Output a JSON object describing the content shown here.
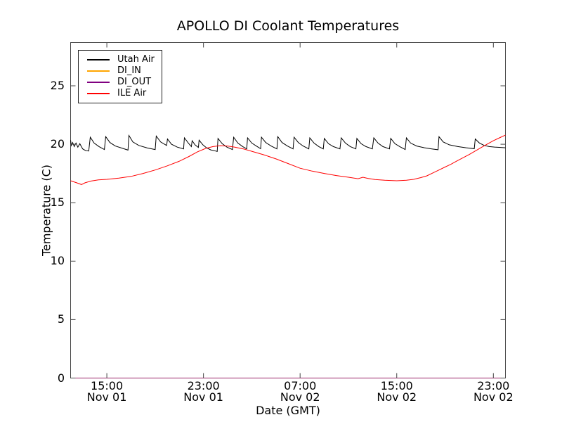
{
  "chart_data": {
    "type": "line",
    "title": "APOLLO DI Coolant Temperatures",
    "xlabel": "Date (GMT)",
    "ylabel": "Temperature (C)",
    "grid": false,
    "legend_position": "upper left",
    "frame_color": "#444444",
    "x_axis": {
      "unit": "hours since Nov 01 12:00 GMT",
      "range": [
        0,
        36
      ],
      "ticks": [
        {
          "t": 3,
          "time": "15:00",
          "date": "Nov 01"
        },
        {
          "t": 11,
          "time": "23:00",
          "date": "Nov 01"
        },
        {
          "t": 19,
          "time": "07:00",
          "date": "Nov 02"
        },
        {
          "t": 27,
          "time": "15:00",
          "date": "Nov 02"
        },
        {
          "t": 35,
          "time": "23:00",
          "date": "Nov 02"
        }
      ]
    },
    "y_axis": {
      "range": [
        0,
        28.7
      ],
      "ticks": [
        0,
        5,
        10,
        15,
        20,
        25
      ],
      "tick_labels": [
        "0",
        "5",
        "10",
        "15",
        "20",
        "25"
      ]
    },
    "series": [
      {
        "name": "Utah Air",
        "color": "#000000",
        "points": [
          [
            0,
            20.35
          ],
          [
            0.05,
            19.9
          ],
          [
            0.17,
            20.15
          ],
          [
            0.3,
            19.8
          ],
          [
            0.45,
            20.1
          ],
          [
            0.6,
            19.75
          ],
          [
            0.76,
            20.05
          ],
          [
            1.0,
            19.6
          ],
          [
            1.25,
            19.45
          ],
          [
            1.5,
            19.42
          ],
          [
            1.63,
            20.6
          ],
          [
            1.95,
            20.1
          ],
          [
            2.35,
            19.8
          ],
          [
            2.8,
            19.55
          ],
          [
            2.91,
            20.65
          ],
          [
            3.25,
            20.15
          ],
          [
            3.7,
            19.85
          ],
          [
            4.3,
            19.65
          ],
          [
            4.75,
            19.5
          ],
          [
            4.83,
            20.75
          ],
          [
            5.15,
            20.2
          ],
          [
            5.65,
            19.9
          ],
          [
            6.35,
            19.68
          ],
          [
            7.0,
            19.55
          ],
          [
            7.09,
            20.7
          ],
          [
            7.45,
            20.2
          ],
          [
            7.95,
            19.9
          ],
          [
            8.02,
            20.45
          ],
          [
            8.35,
            20.0
          ],
          [
            8.85,
            19.75
          ],
          [
            9.35,
            19.6
          ],
          [
            9.42,
            20.55
          ],
          [
            9.75,
            20.1
          ],
          [
            10.0,
            19.8
          ],
          [
            10.06,
            20.3
          ],
          [
            10.3,
            19.95
          ],
          [
            10.58,
            19.72
          ],
          [
            10.64,
            20.35
          ],
          [
            10.95,
            19.95
          ],
          [
            11.25,
            19.7
          ],
          [
            11.6,
            19.52
          ],
          [
            12.0,
            19.42
          ],
          [
            12.14,
            19.38
          ],
          [
            12.2,
            20.5
          ],
          [
            12.55,
            20.05
          ],
          [
            12.95,
            19.75
          ],
          [
            13.4,
            19.55
          ],
          [
            13.5,
            20.6
          ],
          [
            13.85,
            20.1
          ],
          [
            14.25,
            19.8
          ],
          [
            14.58,
            19.6
          ],
          [
            14.65,
            20.55
          ],
          [
            15.0,
            20.1
          ],
          [
            15.45,
            19.8
          ],
          [
            15.73,
            19.62
          ],
          [
            15.8,
            20.6
          ],
          [
            16.15,
            20.15
          ],
          [
            16.6,
            19.85
          ],
          [
            17.08,
            19.6
          ],
          [
            17.15,
            20.65
          ],
          [
            17.5,
            20.15
          ],
          [
            17.95,
            19.85
          ],
          [
            18.42,
            19.6
          ],
          [
            18.5,
            20.6
          ],
          [
            18.85,
            20.15
          ],
          [
            19.25,
            19.85
          ],
          [
            19.72,
            19.6
          ],
          [
            19.8,
            20.55
          ],
          [
            20.15,
            20.1
          ],
          [
            20.55,
            19.8
          ],
          [
            20.92,
            19.6
          ],
          [
            21.0,
            20.5
          ],
          [
            21.35,
            20.05
          ],
          [
            21.75,
            19.8
          ],
          [
            22.3,
            19.6
          ],
          [
            22.4,
            20.55
          ],
          [
            22.75,
            20.1
          ],
          [
            23.15,
            19.8
          ],
          [
            23.62,
            19.6
          ],
          [
            23.7,
            20.5
          ],
          [
            24.05,
            20.05
          ],
          [
            24.45,
            19.8
          ],
          [
            24.98,
            19.6
          ],
          [
            25.1,
            20.55
          ],
          [
            25.45,
            20.1
          ],
          [
            25.85,
            19.8
          ],
          [
            26.4,
            19.6
          ],
          [
            26.5,
            20.5
          ],
          [
            26.85,
            20.05
          ],
          [
            27.25,
            19.8
          ],
          [
            27.7,
            19.55
          ],
          [
            27.8,
            20.55
          ],
          [
            28.15,
            20.1
          ],
          [
            28.65,
            19.85
          ],
          [
            29.3,
            19.7
          ],
          [
            29.9,
            19.6
          ],
          [
            30.42,
            19.53
          ],
          [
            30.5,
            20.65
          ],
          [
            30.85,
            20.2
          ],
          [
            31.35,
            19.95
          ],
          [
            32.05,
            19.8
          ],
          [
            32.75,
            19.7
          ],
          [
            33.42,
            19.62
          ],
          [
            33.5,
            20.45
          ],
          [
            33.85,
            20.1
          ],
          [
            34.25,
            19.9
          ],
          [
            34.65,
            19.8
          ],
          [
            35.1,
            19.76
          ],
          [
            35.6,
            19.73
          ],
          [
            36,
            19.7
          ]
        ]
      },
      {
        "name": "DI_IN",
        "color": "#ffa500",
        "points": [
          [
            0,
            0
          ],
          [
            36,
            0
          ]
        ]
      },
      {
        "name": "DI_OUT",
        "color": "#800080",
        "points": [
          [
            0,
            0
          ],
          [
            36,
            0
          ]
        ]
      },
      {
        "name": "ILE Air",
        "color": "#ff0000",
        "points": [
          [
            0,
            16.88
          ],
          [
            0.5,
            16.7
          ],
          [
            0.9,
            16.55
          ],
          [
            1.2,
            16.7
          ],
          [
            1.7,
            16.85
          ],
          [
            2.3,
            16.95
          ],
          [
            3,
            17.0
          ],
          [
            4,
            17.1
          ],
          [
            5,
            17.25
          ],
          [
            6,
            17.5
          ],
          [
            7,
            17.8
          ],
          [
            8,
            18.15
          ],
          [
            9,
            18.55
          ],
          [
            9.8,
            18.95
          ],
          [
            10.5,
            19.35
          ],
          [
            11.2,
            19.65
          ],
          [
            11.8,
            19.8
          ],
          [
            12.4,
            19.88
          ],
          [
            13,
            19.85
          ],
          [
            13.6,
            19.75
          ],
          [
            14.3,
            19.6
          ],
          [
            15,
            19.4
          ],
          [
            16,
            19.1
          ],
          [
            17,
            18.75
          ],
          [
            18,
            18.35
          ],
          [
            19,
            17.95
          ],
          [
            20,
            17.7
          ],
          [
            21,
            17.5
          ],
          [
            22,
            17.32
          ],
          [
            23,
            17.18
          ],
          [
            23.8,
            17.05
          ],
          [
            24.2,
            17.18
          ],
          [
            24.6,
            17.08
          ],
          [
            25.2,
            16.98
          ],
          [
            26,
            16.92
          ],
          [
            27,
            16.88
          ],
          [
            27.8,
            16.92
          ],
          [
            28.4,
            17.0
          ],
          [
            29,
            17.15
          ],
          [
            29.5,
            17.3
          ],
          [
            30,
            17.55
          ],
          [
            30.5,
            17.8
          ],
          [
            31,
            18.05
          ],
          [
            31.5,
            18.3
          ],
          [
            32,
            18.58
          ],
          [
            32.5,
            18.85
          ],
          [
            33,
            19.12
          ],
          [
            33.5,
            19.42
          ],
          [
            34,
            19.72
          ],
          [
            34.5,
            20.02
          ],
          [
            35,
            20.3
          ],
          [
            35.5,
            20.55
          ],
          [
            36,
            20.78
          ]
        ]
      }
    ]
  }
}
